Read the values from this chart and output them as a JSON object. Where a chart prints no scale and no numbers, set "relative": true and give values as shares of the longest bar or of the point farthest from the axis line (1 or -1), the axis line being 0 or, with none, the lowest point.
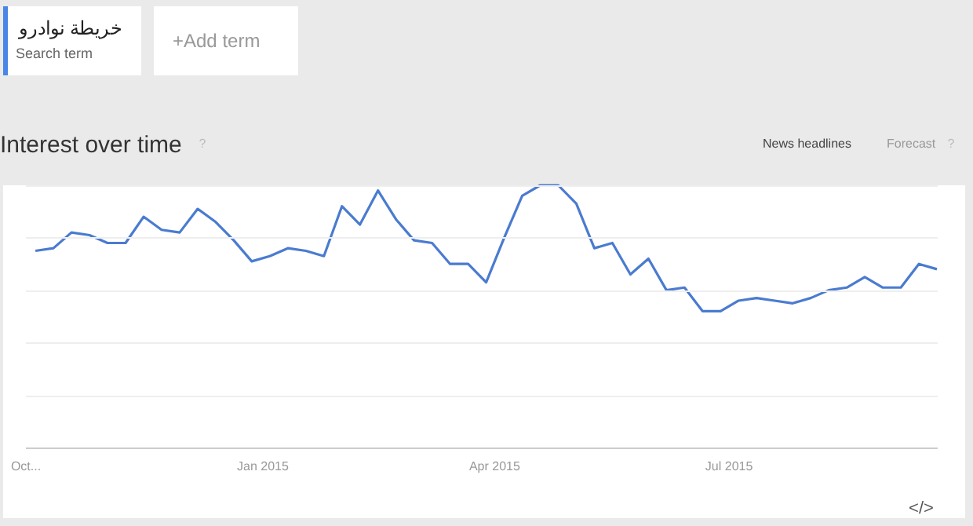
{
  "chart_data": {
    "type": "line",
    "title": "Interest over time",
    "relative": true,
    "grid": "y",
    "x": [
      "2014-10-05",
      "2014-10-12",
      "2014-10-19",
      "2014-10-26",
      "2014-11-02",
      "2014-11-09",
      "2014-11-16",
      "2014-11-23",
      "2014-11-30",
      "2014-12-07",
      "2014-12-14",
      "2014-12-21",
      "2014-12-28",
      "2015-01-04",
      "2015-01-11",
      "2015-01-18",
      "2015-01-25",
      "2015-02-01",
      "2015-02-08",
      "2015-02-15",
      "2015-02-22",
      "2015-03-01",
      "2015-03-08",
      "2015-03-15",
      "2015-03-22",
      "2015-03-29",
      "2015-04-05",
      "2015-04-12",
      "2015-04-19",
      "2015-04-26",
      "2015-05-03",
      "2015-05-10",
      "2015-05-17",
      "2015-05-24",
      "2015-05-31",
      "2015-06-07",
      "2015-06-14",
      "2015-06-21",
      "2015-06-28",
      "2015-07-05",
      "2015-07-12",
      "2015-07-19",
      "2015-07-26",
      "2015-08-02",
      "2015-08-09",
      "2015-08-16",
      "2015-08-23",
      "2015-08-30",
      "2015-09-06",
      "2015-09-13",
      "2015-09-20"
    ],
    "xlim": [
      "2014-10-01",
      "2015-09-20"
    ],
    "xticks": [
      {
        "value": "2014-10-01",
        "label": "Oct..."
      },
      {
        "value": "2015-01-01",
        "label": "Jan 2015"
      },
      {
        "value": "2015-04-01",
        "label": "Apr 2015"
      },
      {
        "value": "2015-07-01",
        "label": "Jul 2015"
      }
    ],
    "series": [
      {
        "color": "#4a7bd0",
        "values": [
          0.75,
          0.76,
          0.82,
          0.81,
          0.78,
          0.78,
          0.88,
          0.83,
          0.82,
          0.91,
          0.86,
          0.79,
          0.71,
          0.73,
          0.76,
          0.75,
          0.73,
          0.92,
          0.85,
          0.98,
          0.87,
          0.79,
          0.78,
          0.7,
          0.7,
          0.63,
          0.8,
          0.96,
          1.0,
          1.0,
          0.93,
          0.76,
          0.78,
          0.66,
          0.72,
          0.6,
          0.61,
          0.52,
          0.52,
          0.56,
          0.57,
          0.56,
          0.55,
          0.57,
          0.6,
          0.61,
          0.65,
          0.61,
          0.61,
          0.7,
          0.68
        ]
      }
    ],
    "annotations": [
      "خريطة نوادرو",
      "Search term",
      "+Add term",
      "?",
      "News headlines",
      "Forecast",
      "?",
      "</>"
    ]
  }
}
